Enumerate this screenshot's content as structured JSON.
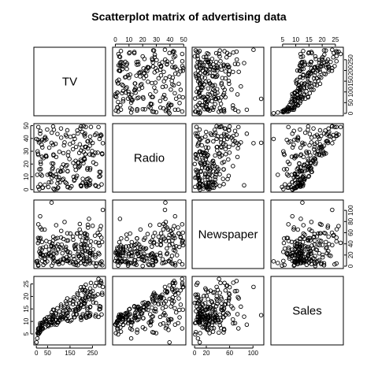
{
  "chart_data": {
    "type": "scatter",
    "subtype": "scatterplot-matrix",
    "title": "Scatterplot matrix of advertising data",
    "variables": [
      "TV",
      "Radio",
      "Newspaper",
      "Sales"
    ],
    "ranges": {
      "TV": [
        0.7,
        296.4
      ],
      "Radio": [
        0,
        49.6
      ],
      "Newspaper": [
        0.3,
        114
      ],
      "Sales": [
        1.6,
        27
      ]
    },
    "axis_ticks": {
      "TV": [
        0,
        50,
        150,
        250
      ],
      "TV_alt": [
        0,
        50,
        100,
        150,
        200,
        250
      ],
      "Radio": [
        0,
        10,
        20,
        30,
        40,
        50
      ],
      "Newspaper": [
        0,
        20,
        60,
        100
      ],
      "Newspaper_alt": [
        0,
        20,
        40,
        60,
        80,
        100
      ],
      "Sales": [
        5,
        10,
        15,
        20,
        25
      ]
    },
    "tick_axes": {
      "top": [
        "Radio",
        "Sales"
      ],
      "bottom": [
        "TV",
        "Newspaper"
      ],
      "left": [
        "Radio",
        "Sales"
      ],
      "right": [
        "TV_alt",
        "Newspaper_alt"
      ]
    },
    "grid": false,
    "legend": "none",
    "n_points": 200,
    "records": [
      [
        230.1,
        37.8,
        69.2,
        22.1
      ],
      [
        44.5,
        39.3,
        45.1,
        10.4
      ],
      [
        17.2,
        45.9,
        69.3,
        9.3
      ],
      [
        151.5,
        41.3,
        58.5,
        18.5
      ],
      [
        180.8,
        10.8,
        58.4,
        12.9
      ],
      [
        8.7,
        48.9,
        75,
        7.2
      ],
      [
        57.5,
        32.8,
        23.5,
        11.8
      ],
      [
        120.2,
        19.6,
        11.6,
        13.2
      ],
      [
        8.6,
        2.1,
        1,
        4.8
      ],
      [
        199.8,
        2.6,
        21.2,
        10.6
      ],
      [
        66.1,
        5.8,
        24.2,
        8.6
      ],
      [
        214.7,
        24,
        4,
        17.4
      ],
      [
        23.8,
        35.1,
        65.9,
        9.2
      ],
      [
        97.5,
        7.6,
        7.2,
        9.7
      ],
      [
        204.1,
        32.9,
        46,
        19
      ],
      [
        195.4,
        47.7,
        52.9,
        22.4
      ],
      [
        67.8,
        36.6,
        114,
        12.5
      ],
      [
        281.4,
        39.6,
        55.8,
        24.4
      ],
      [
        69.2,
        20.5,
        18.3,
        11.3
      ],
      [
        147.3,
        23.9,
        19.1,
        14.6
      ],
      [
        218.4,
        27.7,
        53.4,
        18
      ],
      [
        237.4,
        5.1,
        23.5,
        12.5
      ],
      [
        13.2,
        15.9,
        49.6,
        5.6
      ],
      [
        228.3,
        16.9,
        26.2,
        15.5
      ],
      [
        62.3,
        12.6,
        18.3,
        9.7
      ],
      [
        262.9,
        3.5,
        19.5,
        12
      ],
      [
        142.9,
        29.3,
        12.6,
        15
      ],
      [
        240.1,
        16.7,
        22.9,
        15.9
      ],
      [
        248.8,
        27.1,
        22.9,
        18.9
      ],
      [
        70.6,
        16,
        40.8,
        10.5
      ],
      [
        292.9,
        28.3,
        43.2,
        21.4
      ],
      [
        112.9,
        17.4,
        38.6,
        11.9
      ],
      [
        97.2,
        1.5,
        30,
        9.6
      ],
      [
        265.6,
        20,
        0.3,
        17.4
      ],
      [
        95.7,
        1.4,
        7.4,
        9.5
      ],
      [
        290.7,
        4.1,
        8.5,
        12.8
      ],
      [
        266.9,
        43.8,
        5,
        25.4
      ],
      [
        74.7,
        49.4,
        45.7,
        14.7
      ],
      [
        43.1,
        26.7,
        35.1,
        10.1
      ],
      [
        228,
        37.7,
        32,
        21.5
      ],
      [
        202.5,
        22.3,
        31.6,
        16.6
      ],
      [
        177,
        33.4,
        38.7,
        17.1
      ],
      [
        293.6,
        27.7,
        1.8,
        20.7
      ],
      [
        206.9,
        8.4,
        26.4,
        12.9
      ],
      [
        25.1,
        25.7,
        43.3,
        8.5
      ],
      [
        175.1,
        22.5,
        31.5,
        14.9
      ],
      [
        89.7,
        9.9,
        35.7,
        10.6
      ],
      [
        239.9,
        41.5,
        18.5,
        23.2
      ],
      [
        227.2,
        15.8,
        49.9,
        14.8
      ],
      [
        66.9,
        11.7,
        36.8,
        9.7
      ],
      [
        199.8,
        3.1,
        34.6,
        11.4
      ],
      [
        100.4,
        9.6,
        3.6,
        10.7
      ],
      [
        216.4,
        41.7,
        39.6,
        22.6
      ],
      [
        182.6,
        46.2,
        58.7,
        21.2
      ],
      [
        262.7,
        28.8,
        15.9,
        20.2
      ],
      [
        198.9,
        49.4,
        60,
        23.7
      ],
      [
        7.3,
        28.1,
        41.4,
        5.5
      ],
      [
        136.2,
        19.2,
        16.6,
        13.2
      ],
      [
        210.8,
        49.6,
        37.7,
        23.8
      ],
      [
        210.7,
        29.5,
        9.3,
        18.4
      ],
      [
        53.5,
        2,
        21.4,
        8.1
      ],
      [
        261.3,
        42.7,
        54.7,
        24.2
      ],
      [
        239.3,
        15.5,
        27.3,
        15.7
      ],
      [
        102.7,
        29.6,
        8.4,
        14
      ],
      [
        131.1,
        42.8,
        28.9,
        18
      ],
      [
        69,
        9.3,
        0.9,
        9.3
      ],
      [
        31.5,
        24.6,
        2.2,
        9.5
      ],
      [
        139.3,
        14.5,
        10.2,
        13.4
      ],
      [
        237.4,
        27.5,
        11,
        18.9
      ],
      [
        216.8,
        43.9,
        27.2,
        22.3
      ],
      [
        199.1,
        30.6,
        38.7,
        18.3
      ],
      [
        109.8,
        14.3,
        31.7,
        12.4
      ],
      [
        26.8,
        33,
        19.3,
        8.8
      ],
      [
        129.4,
        5.7,
        31.3,
        11
      ],
      [
        213.4,
        24.6,
        13.1,
        17
      ],
      [
        16.9,
        43.7,
        89.4,
        8.7
      ],
      [
        27.5,
        1.6,
        20.7,
        6.9
      ],
      [
        120.5,
        28.5,
        14.2,
        14.2
      ],
      [
        5.4,
        29.9,
        9.4,
        5.3
      ],
      [
        116,
        7.7,
        23.1,
        11
      ],
      [
        76.4,
        26.7,
        22.3,
        11.8
      ],
      [
        239.8,
        4.1,
        36.9,
        12.3
      ],
      [
        75.3,
        20.3,
        32.5,
        11.3
      ],
      [
        68.4,
        44.5,
        35.6,
        13.6
      ],
      [
        213.5,
        43,
        33.8,
        21.7
      ],
      [
        193.2,
        18.4,
        65.7,
        15.2
      ],
      [
        76.3,
        27.5,
        16,
        12
      ],
      [
        110.7,
        40.6,
        63.2,
        16
      ],
      [
        88.3,
        25.5,
        73.4,
        12.9
      ],
      [
        109.8,
        47.8,
        51.4,
        16.7
      ],
      [
        134.3,
        4.9,
        9.3,
        11.2
      ],
      [
        28.6,
        1.5,
        33,
        7.3
      ],
      [
        217.7,
        33.5,
        59,
        19.4
      ],
      [
        250.9,
        36.5,
        72.3,
        22.2
      ],
      [
        107.4,
        14,
        10.9,
        11.5
      ],
      [
        163.3,
        31.6,
        52.9,
        16.9
      ],
      [
        197.6,
        3.5,
        5.9,
        11.7
      ],
      [
        184.9,
        21,
        22,
        15.5
      ],
      [
        289.7,
        42.3,
        51.2,
        25.4
      ],
      [
        135.2,
        41.7,
        45.9,
        17.2
      ],
      [
        222.4,
        4.3,
        49.8,
        11.7
      ],
      [
        296.4,
        36.3,
        100.9,
        23.8
      ],
      [
        280.2,
        10.1,
        21.4,
        14.8
      ],
      [
        187.9,
        17.2,
        17.9,
        14.7
      ],
      [
        238.2,
        34.3,
        5.3,
        20.7
      ],
      [
        137.9,
        46.4,
        59,
        19.2
      ],
      [
        25,
        11,
        29.7,
        7.2
      ],
      [
        90.4,
        0.3,
        23.2,
        8.7
      ],
      [
        13.1,
        0.4,
        25.6,
        5.3
      ],
      [
        255.4,
        26.9,
        5.5,
        19.8
      ],
      [
        225.8,
        8.2,
        56.5,
        13.4
      ],
      [
        241.7,
        38,
        23.2,
        21.8
      ],
      [
        175.7,
        15.4,
        2.4,
        14.1
      ],
      [
        209.6,
        20.6,
        10.7,
        15.9
      ],
      [
        78.2,
        46.8,
        34.5,
        14.6
      ],
      [
        75.1,
        35,
        52.7,
        12.6
      ],
      [
        139.2,
        14.3,
        25.6,
        12.2
      ],
      [
        76.4,
        0.8,
        14.8,
        9.4
      ],
      [
        125.7,
        36.9,
        79.2,
        15.9
      ],
      [
        19.4,
        16,
        22.3,
        6.6
      ],
      [
        141.3,
        26.8,
        46.2,
        15.5
      ],
      [
        18.8,
        21.7,
        50.4,
        7
      ],
      [
        224,
        2.4,
        15.6,
        11.6
      ],
      [
        123.1,
        34.6,
        12.4,
        15.2
      ],
      [
        229.5,
        32.3,
        74.2,
        19.7
      ],
      [
        87.2,
        11.8,
        25.9,
        10.6
      ],
      [
        7.8,
        38.9,
        50.6,
        6.6
      ],
      [
        80.2,
        0,
        9.2,
        8.8
      ],
      [
        220.3,
        49,
        3.2,
        24.7
      ],
      [
        59.6,
        12,
        43.1,
        9.7
      ],
      [
        0.7,
        39.6,
        8.7,
        1.6
      ],
      [
        265.2,
        2.9,
        43,
        12.7
      ],
      [
        8.4,
        27.2,
        2.1,
        5.7
      ],
      [
        219.8,
        33.5,
        45.1,
        19.6
      ],
      [
        36.9,
        38.6,
        65.6,
        10.8
      ],
      [
        48.3,
        47,
        8.5,
        11.6
      ],
      [
        25.6,
        39,
        9.3,
        9.5
      ],
      [
        273.7,
        28.9,
        59.7,
        20.8
      ],
      [
        43,
        25.9,
        20.5,
        9.6
      ],
      [
        184.9,
        43.9,
        1.7,
        20.7
      ],
      [
        73.4,
        17,
        12.9,
        10.9
      ],
      [
        193.7,
        35.4,
        75.6,
        19.2
      ],
      [
        220.5,
        33.2,
        37.9,
        20.1
      ],
      [
        104.6,
        5.7,
        34.4,
        10.4
      ],
      [
        96.2,
        14.8,
        38.9,
        11.4
      ],
      [
        140.3,
        1.9,
        9,
        10.3
      ],
      [
        240.1,
        7.3,
        8.7,
        13.2
      ],
      [
        243.2,
        49,
        44.3,
        25.4
      ],
      [
        38,
        40.3,
        11.9,
        10.9
      ],
      [
        44.7,
        25.8,
        20.6,
        10.1
      ],
      [
        280.7,
        13.9,
        37,
        16.1
      ],
      [
        121,
        8.4,
        48.7,
        11.6
      ],
      [
        197.6,
        23.3,
        14.2,
        16.6
      ],
      [
        171.3,
        39.7,
        37.7,
        19
      ],
      [
        187.8,
        21.1,
        9.5,
        15.6
      ],
      [
        4.1,
        11.6,
        5.7,
        3.2
      ],
      [
        93.9,
        43.5,
        50.5,
        15.3
      ],
      [
        149.8,
        1.3,
        24.3,
        10.1
      ],
      [
        11.7,
        36.9,
        45.2,
        7.3
      ],
      [
        131.7,
        18.4,
        34.6,
        12.9
      ],
      [
        172.5,
        18.1,
        30.7,
        14.4
      ],
      [
        85.7,
        35.8,
        49.3,
        13.3
      ],
      [
        188.4,
        18.1,
        25.6,
        14.9
      ],
      [
        163.5,
        36.8,
        7.4,
        18
      ],
      [
        117.2,
        14.7,
        5.4,
        11.9
      ],
      [
        234.5,
        3.4,
        84.8,
        11.9
      ],
      [
        17.9,
        37.6,
        21.6,
        8
      ],
      [
        206.8,
        5.2,
        19.4,
        12.2
      ],
      [
        215.4,
        23.6,
        57.6,
        17.1
      ],
      [
        284.3,
        10.6,
        6.4,
        15
      ],
      [
        50,
        11.6,
        18.4,
        8.4
      ],
      [
        164.5,
        20.9,
        47.4,
        14.5
      ],
      [
        19.6,
        20.1,
        17,
        7.6
      ],
      [
        168.4,
        7.1,
        12.8,
        11.7
      ],
      [
        222.4,
        3.4,
        13.1,
        11.5
      ],
      [
        276.9,
        48.9,
        41.8,
        27
      ],
      [
        248.4,
        30.2,
        20.3,
        20.2
      ],
      [
        170.2,
        7.8,
        35.2,
        11.7
      ],
      [
        276.7,
        2.3,
        23.7,
        11.8
      ],
      [
        165.6,
        10,
        17.6,
        12.6
      ],
      [
        156.6,
        2.6,
        8.3,
        10.5
      ],
      [
        218.5,
        5.4,
        27.4,
        12.2
      ],
      [
        56.2,
        5.7,
        29.7,
        8.7
      ],
      [
        287.6,
        43,
        71.8,
        26.2
      ],
      [
        253.8,
        21.3,
        30,
        17.6
      ],
      [
        205,
        45.1,
        19.6,
        22.6
      ],
      [
        139.5,
        2.1,
        26.6,
        10.3
      ],
      [
        191.1,
        28.7,
        18.2,
        17.3
      ],
      [
        286,
        13.9,
        3.7,
        15.9
      ],
      [
        18.7,
        12.1,
        23.4,
        6.7
      ],
      [
        39.5,
        41.1,
        5.8,
        10.8
      ],
      [
        75.5,
        10.8,
        6,
        9.9
      ],
      [
        17.2,
        4.1,
        31.6,
        5.9
      ],
      [
        166.8,
        42,
        3.6,
        19.6
      ],
      [
        149.7,
        35.6,
        6,
        17.3
      ],
      [
        38.2,
        3.7,
        13.8,
        7.6
      ],
      [
        94.2,
        4.9,
        8.1,
        9.7
      ],
      [
        177,
        9.3,
        6.4,
        12.8
      ],
      [
        283.6,
        42,
        66.2,
        25.5
      ],
      [
        232.1,
        8.6,
        8.7,
        13.4
      ]
    ]
  }
}
